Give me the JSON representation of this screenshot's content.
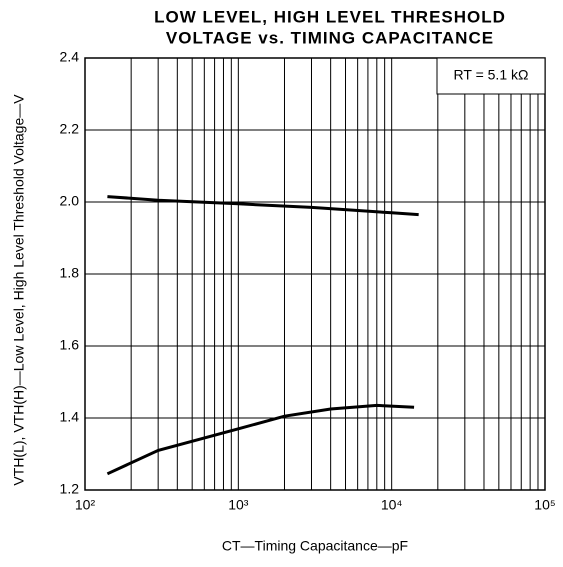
{
  "chart_data": {
    "type": "line",
    "title": [
      "LOW LEVEL, HIGH LEVEL THRESHOLD",
      "VOLTAGE vs. TIMING CAPACITANCE"
    ],
    "x_label": "CT—Timing Capacitance—pF",
    "y_label": "VTH(L), VTH(H)—Low Level, High Level Threshold Voltage—V",
    "annotation": "RT = 5.1 kΩ",
    "xlog": true,
    "grid": true,
    "xlim": [
      100,
      100000
    ],
    "xticks": [
      {
        "value": 100,
        "label": "10²"
      },
      {
        "value": 1000,
        "label": "10³"
      },
      {
        "value": 10000,
        "label": "10⁴"
      },
      {
        "value": 100000,
        "label": "10⁵"
      }
    ],
    "xminorticks": [
      200,
      300,
      400,
      500,
      600,
      700,
      800,
      900,
      2000,
      3000,
      4000,
      5000,
      6000,
      7000,
      8000,
      9000,
      20000,
      30000,
      40000,
      50000,
      60000,
      70000,
      80000,
      90000
    ],
    "ylim": [
      1.2,
      2.4
    ],
    "yticks": [
      1.2,
      1.4,
      1.6,
      1.8,
      {
        "value": 2.0,
        "label": "2.0"
      },
      2.2,
      2.4
    ],
    "series": [
      {
        "color": "#000000",
        "x": [
          140,
          300,
          1000,
          3000,
          10000,
          15000
        ],
        "values": [
          2.015,
          2.005,
          1.995,
          1.985,
          1.97,
          1.965
        ]
      },
      {
        "color": "#000000",
        "x": [
          140,
          300,
          1000,
          2000,
          4000,
          8000,
          14000
        ],
        "values": [
          1.245,
          1.31,
          1.37,
          1.405,
          1.425,
          1.435,
          1.43
        ]
      }
    ]
  }
}
